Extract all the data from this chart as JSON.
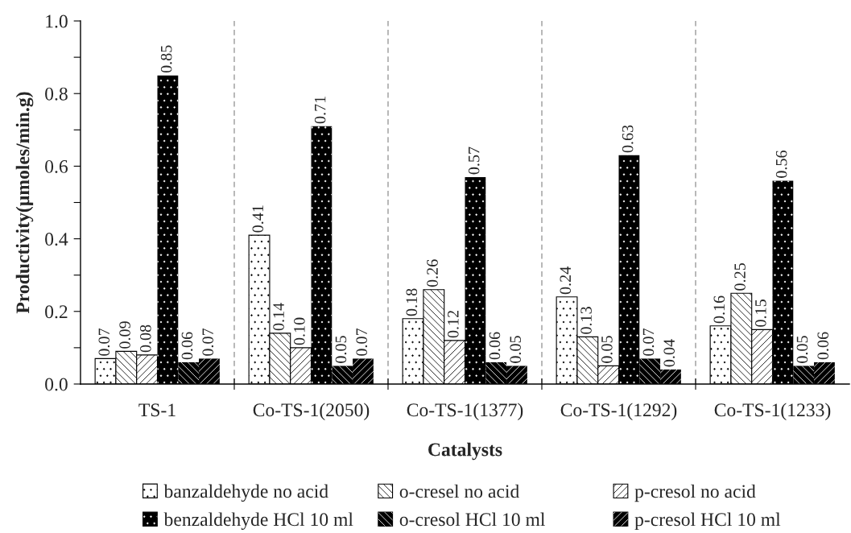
{
  "chart_data": {
    "type": "bar",
    "xlabel": "Catalysts",
    "ylabel": "Productivity(µmoles/min.g)",
    "categories": [
      "TS-1",
      "Co-TS-1(2050)",
      "Co-TS-1(1377)",
      "Co-TS-1(1292)",
      "Co-TS-1(1233)"
    ],
    "series": [
      {
        "name": "banzaldehyde no acid",
        "color": "#ffffff",
        "values": [
          0.07,
          0.41,
          0.18,
          0.24,
          0.16
        ],
        "value_labels": [
          "0.07",
          "0.41",
          "0.18",
          "0.24",
          "0.16"
        ]
      },
      {
        "name": "o-cresel no acid",
        "color": "#ffffff",
        "values": [
          0.09,
          0.14,
          0.26,
          0.13,
          0.25
        ],
        "value_labels": [
          "0.09",
          "0.14",
          "0.26",
          "0.13",
          "0.25"
        ]
      },
      {
        "name": "p-cresol no acid",
        "color": "#ffffff",
        "values": [
          0.08,
          0.1,
          0.12,
          0.05,
          0.15
        ],
        "value_labels": [
          "0.08",
          "0.10",
          "0.12",
          "0.05",
          "0.15"
        ]
      },
      {
        "name": "benzaldehyde HCl 10 ml",
        "color": "#000000",
        "values": [
          0.85,
          0.71,
          0.57,
          0.63,
          0.56
        ],
        "value_labels": [
          "0.85",
          "0.71",
          "0.57",
          "0.63",
          "0.56"
        ]
      },
      {
        "name": "o-cresol HCl 10 ml",
        "color": "#000000",
        "values": [
          0.06,
          0.05,
          0.06,
          0.07,
          0.05
        ],
        "value_labels": [
          "0.06",
          "0.05",
          "0.06",
          "0.07",
          "0.05"
        ]
      },
      {
        "name": "p-cresol HCl 10 ml",
        "color": "#000000",
        "values": [
          0.07,
          0.07,
          0.05,
          0.04,
          0.06
        ],
        "value_labels": [
          "0.07",
          "0.07",
          "0.05",
          "0.04",
          "0.06"
        ]
      }
    ],
    "ylim": [
      0,
      1
    ],
    "yticks": [
      {
        "value": 0,
        "label": "0.0"
      },
      0.2,
      0.4,
      0.6,
      0.8,
      {
        "value": 1,
        "label": "1.0"
      }
    ],
    "grid": "x",
    "legend": "bottom"
  }
}
